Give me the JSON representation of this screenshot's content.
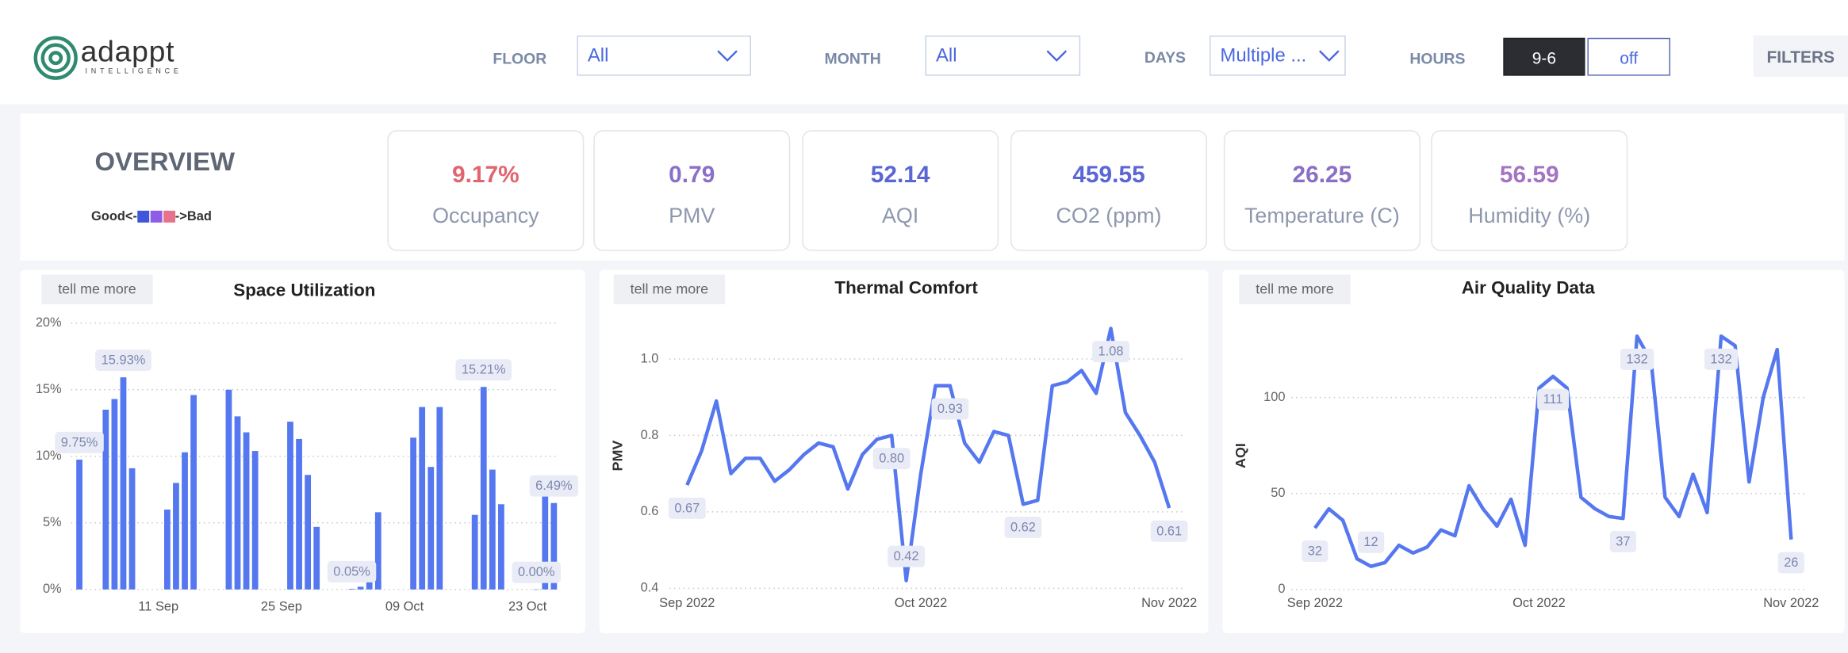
{
  "header": {
    "logo": {
      "name": "adappt",
      "tagline": "INTELLIGENCE"
    },
    "filters": [
      {
        "label": "FLOOR",
        "value": "All"
      },
      {
        "label": "MONTH",
        "value": "All"
      },
      {
        "label": "DAYS",
        "value": "Multiple ..."
      }
    ],
    "hours": {
      "label": "HOURS",
      "options": [
        "9-6",
        "off"
      ]
    },
    "filters_button": "FILTERS"
  },
  "overview": {
    "title": "OVERVIEW",
    "legend": {
      "good": "Good<-",
      "bad": "->Bad",
      "colors": [
        "#3f57d8",
        "#8f5ce8",
        "#e8728c"
      ]
    },
    "cards": [
      {
        "value": "9.17%",
        "label": "Occupancy",
        "color": "#e2646f"
      },
      {
        "value": "0.79",
        "label": "PMV",
        "color": "#8a70c8"
      },
      {
        "value": "52.14",
        "label": "AQI",
        "color": "#5a66d4"
      },
      {
        "value": "459.55",
        "label": "CO2 (ppm)",
        "color": "#5a66d4"
      },
      {
        "value": "26.25",
        "label": "Temperature (C)",
        "color": "#8a6fc4"
      },
      {
        "value": "56.59",
        "label": "Humidity (%)",
        "color": "#a474c2"
      }
    ]
  },
  "chart_data": [
    {
      "type": "bar",
      "title": "Space Utilization",
      "button": "tell me more",
      "color": "#5577ef",
      "grid": true,
      "categories": [
        null,
        null,
        null,
        null,
        null,
        null,
        null,
        null,
        null,
        "11 Sep",
        null,
        null,
        null,
        null,
        null,
        null,
        null,
        null,
        null,
        null,
        null,
        null,
        null,
        "25 Sep",
        null,
        null,
        null,
        null,
        null,
        null,
        null,
        null,
        null,
        null,
        null,
        null,
        null,
        "09 Oct",
        null,
        null,
        null,
        null,
        null,
        null,
        null,
        null,
        null,
        null,
        null,
        null,
        null,
        "23 Oct",
        null,
        null,
        null,
        null
      ],
      "values": [
        9.75,
        null,
        null,
        13.5,
        14.3,
        15.93,
        9.1,
        null,
        null,
        null,
        6.0,
        8.0,
        10.3,
        14.6,
        null,
        null,
        null,
        15.0,
        13.0,
        11.8,
        10.4,
        null,
        null,
        null,
        12.6,
        11.3,
        8.6,
        4.7,
        null,
        null,
        null,
        0.05,
        0.2,
        0.7,
        5.8,
        null,
        null,
        null,
        11.4,
        13.7,
        9.2,
        13.7,
        null,
        null,
        null,
        5.6,
        15.21,
        9.0,
        6.4,
        null,
        null,
        null,
        0.0,
        7.3,
        6.49,
        null
      ],
      "value_labels": [
        "9.75%",
        null,
        null,
        null,
        null,
        "15.93%",
        null,
        null,
        null,
        null,
        null,
        null,
        null,
        null,
        null,
        null,
        null,
        null,
        null,
        null,
        null,
        null,
        null,
        null,
        null,
        null,
        null,
        null,
        null,
        null,
        null,
        "0.05%",
        null,
        null,
        null,
        null,
        null,
        null,
        null,
        null,
        null,
        null,
        null,
        null,
        null,
        null,
        "15.21%",
        null,
        null,
        null,
        null,
        null,
        "0.00%",
        null,
        "6.49%",
        null
      ],
      "ylim": [
        0,
        20
      ],
      "yticks": [
        {
          "value": 0,
          "label": "0%"
        },
        {
          "value": 5,
          "label": "5%"
        },
        {
          "value": 10,
          "label": "10%"
        },
        {
          "value": 15,
          "label": "15%"
        },
        {
          "value": 20,
          "label": "20%"
        }
      ]
    },
    {
      "type": "line",
      "title": "Thermal Comfort",
      "button": "tell me more",
      "y_label": "PMV",
      "color": "#5577ef",
      "grid": true,
      "categories": [
        "Sep 2022",
        null,
        null,
        null,
        null,
        null,
        null,
        null,
        null,
        null,
        null,
        null,
        null,
        null,
        null,
        null,
        "Oct 2022",
        null,
        null,
        null,
        null,
        null,
        null,
        null,
        null,
        null,
        null,
        null,
        null,
        null,
        null,
        null,
        null,
        "Nov 2022"
      ],
      "values": [
        0.67,
        0.76,
        0.89,
        0.7,
        0.74,
        0.74,
        0.68,
        0.71,
        0.75,
        0.78,
        0.77,
        0.66,
        0.75,
        0.79,
        0.8,
        0.42,
        0.7,
        0.93,
        0.93,
        0.78,
        0.73,
        0.81,
        0.8,
        0.62,
        0.63,
        0.93,
        0.94,
        0.97,
        0.91,
        1.08,
        0.86,
        0.8,
        0.73,
        0.61
      ],
      "value_labels": [
        "0.67",
        null,
        null,
        null,
        null,
        null,
        null,
        null,
        null,
        null,
        null,
        null,
        null,
        null,
        "0.80",
        "0.42",
        null,
        null,
        "0.93",
        null,
        null,
        null,
        null,
        "0.62",
        null,
        null,
        null,
        null,
        null,
        "1.08",
        null,
        null,
        null,
        "0.61"
      ],
      "ylim": [
        0.4,
        1.1
      ],
      "yticks": [
        0.4,
        0.6,
        0.8,
        {
          "value": 1,
          "label": "1.0"
        }
      ]
    },
    {
      "type": "line",
      "title": "Air Quality Data",
      "button": "tell me more",
      "y_label": "AQI",
      "color": "#5577ef",
      "grid": true,
      "categories": [
        "Sep 2022",
        null,
        null,
        null,
        null,
        null,
        null,
        null,
        null,
        null,
        null,
        null,
        null,
        null,
        null,
        null,
        "Oct 2022",
        null,
        null,
        null,
        null,
        null,
        null,
        null,
        null,
        null,
        null,
        null,
        null,
        null,
        null,
        null,
        null,
        null,
        "Nov 2022"
      ],
      "values": [
        32,
        42,
        36,
        16,
        12,
        14,
        23,
        19,
        22,
        31,
        28,
        54,
        42,
        33,
        47,
        23,
        105,
        111,
        105,
        48,
        42,
        38,
        37,
        132,
        119,
        48,
        38,
        60,
        40,
        132,
        127,
        56,
        100,
        125,
        26
      ],
      "value_labels": [
        "32",
        null,
        null,
        null,
        "12",
        null,
        null,
        null,
        null,
        null,
        null,
        null,
        null,
        null,
        null,
        null,
        null,
        "111",
        null,
        null,
        null,
        null,
        "37",
        "132",
        null,
        null,
        null,
        null,
        null,
        "132",
        null,
        null,
        null,
        null,
        "26"
      ],
      "ylim": [
        0,
        140
      ],
      "yticks": [
        0,
        50,
        100
      ]
    }
  ]
}
